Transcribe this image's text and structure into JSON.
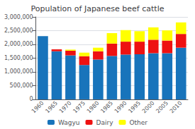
{
  "chart_data": {
    "type": "bar",
    "title": "Population of Japanese beef cattle",
    "categories": [
      "1960",
      "1965",
      "1970",
      "1975",
      "1980",
      "1985",
      "1990",
      "1995",
      "2000",
      "2005",
      "2010"
    ],
    "series": [
      {
        "name": "Wagyu",
        "color": "#1874bb",
        "values": [
          2300000,
          1750000,
          1600000,
          1250000,
          1450000,
          1580000,
          1630000,
          1640000,
          1680000,
          1680000,
          1880000
        ]
      },
      {
        "name": "Dairy",
        "color": "#ee1111",
        "values": [
          0,
          70000,
          170000,
          320000,
          300000,
          450000,
          470000,
          460000,
          490000,
          460000,
          500000
        ]
      },
      {
        "name": "Other",
        "color": "#ffff00",
        "values": [
          0,
          0,
          40000,
          130000,
          130000,
          380000,
          420000,
          380000,
          450000,
          370000,
          420000
        ]
      }
    ],
    "stacked": true,
    "ylim": [
      0,
      3000000
    ],
    "yticks": [
      0,
      {
        "value": 500000,
        "label": "500,000"
      },
      {
        "value": 1000000,
        "label": "1,000,000"
      },
      {
        "value": 1500000,
        "label": "1,500,000"
      },
      {
        "value": 2000000,
        "label": "2,000,000"
      },
      {
        "value": 2500000,
        "label": "2,500,000"
      },
      {
        "value": 3000000,
        "label": "3,000,000"
      }
    ],
    "grid": true,
    "legend": "bottom"
  }
}
